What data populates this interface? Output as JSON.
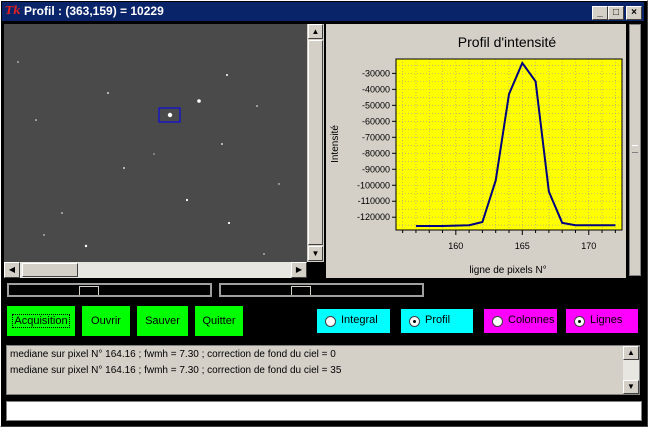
{
  "window": {
    "title": "Profil : (363,159) = 10229",
    "icon_label": "Tk",
    "minimize_glyph": "_",
    "maximize_glyph": "□",
    "close_glyph": "×"
  },
  "chart_data": {
    "type": "line",
    "title": "Profil d'intensité",
    "xlabel": "ligne de pixels N°",
    "ylabel": "Intensité",
    "x": [
      157,
      159,
      161,
      162,
      163,
      164,
      165,
      166,
      167,
      168,
      169,
      170,
      172
    ],
    "y": [
      -125500,
      -125500,
      -125000,
      -123000,
      -97000,
      -43000,
      -23500,
      -35000,
      -104000,
      -123500,
      -125000,
      -125000,
      -125000
    ],
    "xlim": [
      155.5,
      172.5
    ],
    "ylim": [
      -128000,
      -21000
    ],
    "xticks": [
      "160",
      "165",
      "170"
    ],
    "yticks": [
      "-30000",
      "-40000",
      "-50000",
      "-60000",
      "-70000",
      "-80000",
      "-90000",
      "-100000",
      "-110000",
      "-120000"
    ],
    "grid": true,
    "background": "#ffff00",
    "line_color": "#000080"
  },
  "buttons": {
    "acquisition": "Acquisition",
    "ouvrir": "Ouvrir",
    "sauver": "Sauver",
    "quitter": "Quitter"
  },
  "radios": {
    "integral": "Integral",
    "profil": "Profil",
    "colonnes": "Colonnes",
    "lignes": "Lignes"
  },
  "log": {
    "lines": [
      "mediane sur pixel N° 164.16  ;  fwmh = 7.30   ;  correction de fond du ciel = 0",
      "mediane sur pixel N° 164.16  ;  fwmh = 7.30   ;  correction de fond du ciel = 35"
    ]
  },
  "colors": {
    "button_green": "#00ff00",
    "radio_cyan": "#00ffff",
    "radio_magenta": "#ff00ff",
    "selection_box": "#0000ff"
  },
  "scroll_glyphs": {
    "up": "▲",
    "down": "▼",
    "left": "◀",
    "right": "▶"
  }
}
